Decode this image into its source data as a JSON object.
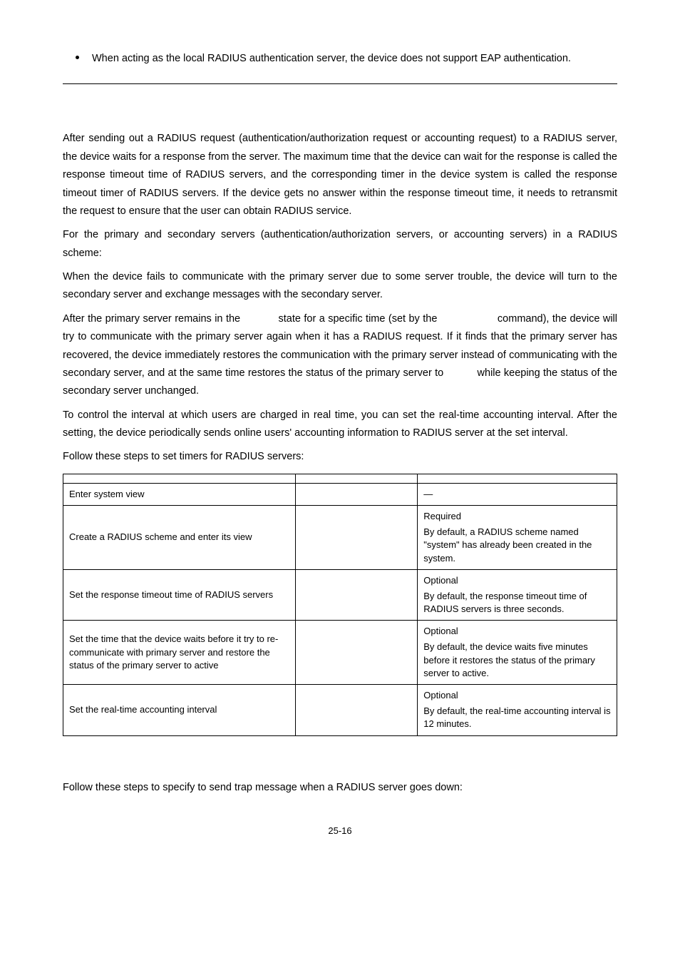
{
  "bullet": {
    "text": "When acting as the local RADIUS authentication server, the device does not support EAP authentication."
  },
  "paragraphs": {
    "p1": "After sending out a RADIUS request (authentication/authorization request or accounting request) to a RADIUS server, the device waits for a response from the server. The maximum time that the device can wait for the response is called the response timeout time of RADIUS servers, and the corresponding timer in the device system is called the response timeout timer of RADIUS servers. If the device gets no answer within the response timeout time, it needs to retransmit the request to ensure that the user can obtain RADIUS service.",
    "p2": "For the primary and secondary servers (authentication/authorization servers, or accounting servers) in a RADIUS scheme:",
    "p3": "When the device fails to communicate with the primary server due to some server trouble, the device will turn to the secondary server and exchange messages with the secondary server.",
    "p4": "After the primary server remains in the            state for a specific time (set by the                   command), the device will try to communicate with the primary server again when it has a RADIUS request. If it finds that the primary server has recovered, the device immediately restores the communication with the primary server instead of communicating with the secondary server, and at the same time restores the status of the primary server to           while keeping the status of the secondary server unchanged.",
    "p5": "To control the interval at which users are charged in real time, you can set the real-time accounting interval. After the setting, the device periodically sends online users' accounting information to RADIUS server at the set interval.",
    "p6": "Follow these steps to set timers for RADIUS servers:",
    "p7": "Follow these steps to specify to send trap message when a RADIUS server goes down:"
  },
  "table": {
    "header": {
      "c1": "",
      "c2": "",
      "c3": ""
    },
    "rows": [
      {
        "todo": "Enter system view",
        "cmd": "",
        "remark": "—"
      },
      {
        "todo": "Create a RADIUS scheme and enter its view",
        "cmd": "",
        "remark_title": "Required",
        "remark_body": "By default, a RADIUS scheme named \"system\" has already been created in the system."
      },
      {
        "todo": "Set the response timeout time of RADIUS servers",
        "cmd": "",
        "remark_title": "Optional",
        "remark_body": "By default, the response timeout time of RADIUS servers is three seconds."
      },
      {
        "todo": "Set the time that the device waits before it try to re-communicate with primary server and restore the status of the primary server to active",
        "cmd": "",
        "remark_title": "Optional",
        "remark_body": "By default, the device waits five minutes before it restores the status of the primary server to active."
      },
      {
        "todo": "Set the real-time accounting interval",
        "cmd": "",
        "remark_title": "Optional",
        "remark_body": "By default, the real-time accounting interval is 12 minutes."
      }
    ]
  },
  "footer": {
    "page": "25-16"
  }
}
